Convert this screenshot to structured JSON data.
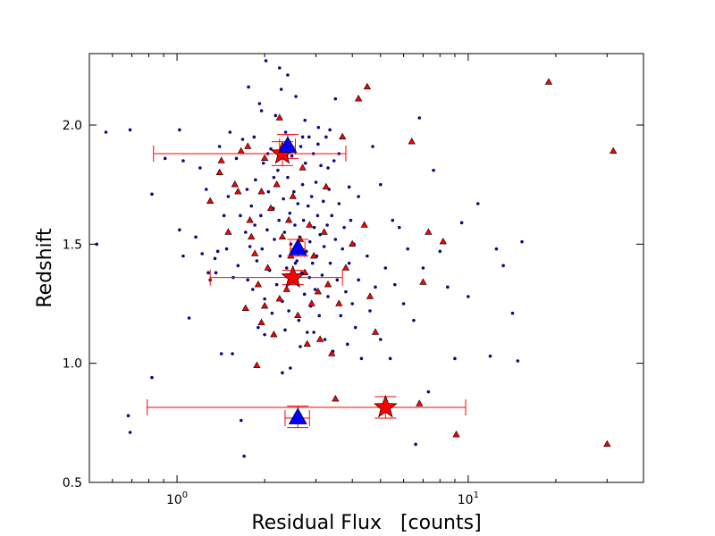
{
  "chart_data": {
    "type": "scatter",
    "xlabel": "Residual Flux   [counts]",
    "ylabel": "Redshift",
    "xscale": "log",
    "xlim": [
      0.5,
      40
    ],
    "ylim": [
      0.5,
      2.3
    ],
    "x_ticks": [
      {
        "value": 1,
        "label": "10",
        "exp": "0"
      },
      {
        "value": 10,
        "label": "10",
        "exp": "1"
      }
    ],
    "y_ticks": [
      {
        "value": 0.5,
        "label": "0.5"
      },
      {
        "value": 1.0,
        "label": "1.0"
      },
      {
        "value": 1.5,
        "label": "1.5"
      },
      {
        "value": 2.0,
        "label": "2.0"
      }
    ],
    "grid": false,
    "legend": "none",
    "colors": {
      "dots": "#0a0a80",
      "triangles": "#ff0000",
      "stars": "#ff0000",
      "blue_triangles": "#0000ff",
      "errorbars": "#ff0000"
    },
    "series": [
      {
        "marker": "dot",
        "color": "#0a0a80",
        "points": [
          [
            0.53,
            1.5
          ],
          [
            0.57,
            1.97
          ],
          [
            0.69,
            1.98
          ],
          [
            0.68,
            0.78
          ],
          [
            0.69,
            0.71
          ],
          [
            0.82,
            0.94
          ],
          [
            0.82,
            1.71
          ],
          [
            0.91,
            1.86
          ],
          [
            1.02,
            1.98
          ],
          [
            1.05,
            1.45
          ],
          [
            1.05,
            1.85
          ],
          [
            1.02,
            1.56
          ],
          [
            1.1,
            1.19
          ],
          [
            1.16,
            1.53
          ],
          [
            1.22,
            1.46
          ],
          [
            1.2,
            1.82
          ],
          [
            1.26,
            1.73
          ],
          [
            1.28,
            1.38
          ],
          [
            1.3,
            1.35
          ],
          [
            1.35,
            1.44
          ],
          [
            1.36,
            1.38
          ],
          [
            1.38,
            1.47
          ],
          [
            1.4,
            1.91
          ],
          [
            1.42,
            1.04
          ],
          [
            1.45,
            1.62
          ],
          [
            1.48,
            1.48
          ],
          [
            1.5,
            1.7
          ],
          [
            1.52,
            1.97
          ],
          [
            1.55,
            1.04
          ],
          [
            1.56,
            1.36
          ],
          [
            1.6,
            1.86
          ],
          [
            1.62,
            1.41
          ],
          [
            1.65,
            1.62
          ],
          [
            1.66,
            0.76
          ],
          [
            1.68,
            1.94
          ],
          [
            1.7,
            0.61
          ],
          [
            1.72,
            1.55
          ],
          [
            1.74,
            1.73
          ],
          [
            1.76,
            2.16
          ],
          [
            1.78,
            1.49
          ],
          [
            1.8,
            1.66
          ],
          [
            1.82,
            1.31
          ],
          [
            1.84,
            1.95
          ],
          [
            1.86,
            1.77
          ],
          [
            1.88,
            1.43
          ],
          [
            1.9,
            1.15
          ],
          [
            1.92,
            2.09
          ],
          [
            1.94,
            1.62
          ],
          [
            1.96,
            1.48
          ],
          [
            1.98,
            1.84
          ],
          [
            2.0,
            1.27
          ],
          [
            2.02,
            2.27
          ],
          [
            2.04,
            1.56
          ],
          [
            2.06,
            1.72
          ],
          [
            2.08,
            1.39
          ],
          [
            2.1,
            1.9
          ],
          [
            2.12,
            1.21
          ],
          [
            2.14,
            1.65
          ],
          [
            2.16,
            1.52
          ],
          [
            2.18,
            2.04
          ],
          [
            2.2,
            1.33
          ],
          [
            2.22,
            1.81
          ],
          [
            2.24,
            1.6
          ],
          [
            2.26,
            1.45
          ],
          [
            2.28,
            2.15
          ],
          [
            2.3,
            1.26
          ],
          [
            2.32,
            1.69
          ],
          [
            2.34,
            1.55
          ],
          [
            2.36,
            1.97
          ],
          [
            2.38,
            1.4
          ],
          [
            2.4,
            1.78
          ],
          [
            2.42,
            1.22
          ],
          [
            2.44,
            1.63
          ],
          [
            2.46,
            1.5
          ],
          [
            2.48,
            1.87
          ],
          [
            2.5,
            1.34
          ],
          [
            2.52,
            1.72
          ],
          [
            2.54,
            1.58
          ],
          [
            2.56,
            2.12
          ],
          [
            2.58,
            1.43
          ],
          [
            2.6,
            1.67
          ],
          [
            2.62,
            1.18
          ],
          [
            2.64,
            1.53
          ],
          [
            2.66,
            1.91
          ],
          [
            2.68,
            1.38
          ],
          [
            2.7,
            1.75
          ],
          [
            2.72,
            1.6
          ],
          [
            2.74,
            1.29
          ],
          [
            2.76,
            1.84
          ],
          [
            2.78,
            1.47
          ],
          [
            2.8,
            1.13
          ],
          [
            2.82,
            1.66
          ],
          [
            2.84,
            1.95
          ],
          [
            2.86,
            1.51
          ],
          [
            2.88,
            1.24
          ],
          [
            2.9,
            1.7
          ],
          [
            2.92,
            1.42
          ],
          [
            2.94,
            1.88
          ],
          [
            2.96,
            1.57
          ],
          [
            2.98,
            1.31
          ],
          [
            3.0,
            1.76
          ],
          [
            3.02,
            1.45
          ],
          [
            3.04,
            1.62
          ],
          [
            3.06,
            1.99
          ],
          [
            3.08,
            1.2
          ],
          [
            3.1,
            1.54
          ],
          [
            3.12,
            1.83
          ],
          [
            3.15,
            1.37
          ],
          [
            3.18,
            1.68
          ],
          [
            3.2,
            1.49
          ],
          [
            3.22,
            1.1
          ],
          [
            3.25,
            1.95
          ],
          [
            3.28,
            1.58
          ],
          [
            3.3,
            1.28
          ],
          [
            3.33,
            1.73
          ],
          [
            3.36,
            1.42
          ],
          [
            3.4,
            1.62
          ],
          [
            3.43,
            1.05
          ],
          [
            3.46,
            1.85
          ],
          [
            3.5,
            1.52
          ],
          [
            3.55,
            1.35
          ],
          [
            3.6,
            1.67
          ],
          [
            3.65,
            1.2
          ],
          [
            3.7,
            1.48
          ],
          [
            3.75,
            1.57
          ],
          [
            3.8,
            1.3
          ],
          [
            3.85,
            1.08
          ],
          [
            3.9,
            1.42
          ],
          [
            3.95,
            1.6
          ],
          [
            4.0,
            1.25
          ],
          [
            4.05,
            1.5
          ],
          [
            4.1,
            1.15
          ],
          [
            4.2,
            1.35
          ],
          [
            4.3,
            1.02
          ],
          [
            4.4,
            1.58
          ],
          [
            4.5,
            1.45
          ],
          [
            4.6,
            1.22
          ],
          [
            4.8,
            1.32
          ],
          [
            5.0,
            1.1
          ],
          [
            5.2,
            1.4
          ],
          [
            5.4,
            1.02
          ],
          [
            5.6,
            1.33
          ],
          [
            5.8,
            1.57
          ],
          [
            6.0,
            1.25
          ],
          [
            6.2,
            1.48
          ],
          [
            6.5,
            1.18
          ],
          [
            6.6,
            0.66
          ],
          [
            6.8,
            2.03
          ],
          [
            7.0,
            1.4
          ],
          [
            7.3,
            0.88
          ],
          [
            7.6,
            1.81
          ],
          [
            8.0,
            1.47
          ],
          [
            8.5,
            1.32
          ],
          [
            9.0,
            1.02
          ],
          [
            9.5,
            1.59
          ],
          [
            10.0,
            1.28
          ],
          [
            10.8,
            1.67
          ],
          [
            11.9,
            1.03
          ],
          [
            12.5,
            1.48
          ],
          [
            13.2,
            1.41
          ],
          [
            14.2,
            1.21
          ],
          [
            14.8,
            1.01
          ],
          [
            15.3,
            1.51
          ],
          [
            2.25,
            2.24
          ],
          [
            2.4,
            2.21
          ],
          [
            1.95,
            2.06
          ],
          [
            3.5,
            2.11
          ],
          [
            4.7,
            1.91
          ],
          [
            3.3,
            1.82
          ],
          [
            2.05,
            1.88
          ],
          [
            2.7,
            1.95
          ],
          [
            2.15,
            1.78
          ],
          [
            1.85,
            1.58
          ],
          [
            2.55,
            1.42
          ],
          [
            2.85,
            1.36
          ],
          [
            2.35,
            1.14
          ],
          [
            2.65,
            1.07
          ],
          [
            3.05,
            1.92
          ],
          [
            2.95,
            1.13
          ],
          [
            2.45,
            0.98
          ],
          [
            3.35,
            1.98
          ],
          [
            2.75,
            2.02
          ],
          [
            2.0,
            1.12
          ],
          [
            1.75,
            1.35
          ],
          [
            2.3,
            0.96
          ],
          [
            3.6,
            1.88
          ],
          [
            4.2,
            1.7
          ],
          [
            5.0,
            1.75
          ],
          [
            5.5,
            1.6
          ],
          [
            3.9,
            1.74
          ]
        ]
      },
      {
        "marker": "triangle",
        "color": "#ff0000",
        "points": [
          [
            1.3,
            1.68
          ],
          [
            1.4,
            1.8
          ],
          [
            1.42,
            1.85
          ],
          [
            1.5,
            1.55
          ],
          [
            1.58,
            1.75
          ],
          [
            1.62,
            1.72
          ],
          [
            1.66,
            1.89
          ],
          [
            1.72,
            1.23
          ],
          [
            1.75,
            1.91
          ],
          [
            1.78,
            1.6
          ],
          [
            1.8,
            1.53
          ],
          [
            1.85,
            1.46
          ],
          [
            1.88,
            0.99
          ],
          [
            1.9,
            1.33
          ],
          [
            1.95,
            1.17
          ],
          [
            2.0,
            1.86
          ],
          [
            2.05,
            1.4
          ],
          [
            2.1,
            1.65
          ],
          [
            2.15,
            1.12
          ],
          [
            2.2,
            1.75
          ],
          [
            2.25,
            1.27
          ],
          [
            2.3,
            1.53
          ],
          [
            2.32,
            1.88
          ],
          [
            2.38,
            1.31
          ],
          [
            2.42,
            1.6
          ],
          [
            2.46,
            1.45
          ],
          [
            2.5,
            1.7
          ],
          [
            2.55,
            1.36
          ],
          [
            2.6,
            1.2
          ],
          [
            2.65,
            1.52
          ],
          [
            2.7,
            1.82
          ],
          [
            2.75,
            1.38
          ],
          [
            2.8,
            1.08
          ],
          [
            2.85,
            1.58
          ],
          [
            2.9,
            1.25
          ],
          [
            2.95,
            1.45
          ],
          [
            3.05,
            1.3
          ],
          [
            3.1,
            1.1
          ],
          [
            3.2,
            1.55
          ],
          [
            3.25,
            1.74
          ],
          [
            3.3,
            1.33
          ],
          [
            3.4,
            1.04
          ],
          [
            3.5,
            0.85
          ],
          [
            3.6,
            1.25
          ],
          [
            3.8,
            1.4
          ],
          [
            4.0,
            1.5
          ],
          [
            4.2,
            2.11
          ],
          [
            4.5,
            2.16
          ],
          [
            4.6,
            1.28
          ],
          [
            4.8,
            1.13
          ],
          [
            6.4,
            1.93
          ],
          [
            7.0,
            1.34
          ],
          [
            7.3,
            1.55
          ],
          [
            8.2,
            1.51
          ],
          [
            9.1,
            0.7
          ],
          [
            18.9,
            2.18
          ],
          [
            30.0,
            0.66
          ],
          [
            31.5,
            1.89
          ],
          [
            6.8,
            0.83
          ],
          [
            4.4,
            1.58
          ],
          [
            3.7,
            1.95
          ],
          [
            2.25,
            2.03
          ],
          [
            1.95,
            1.72
          ],
          [
            2.0,
            1.24
          ]
        ]
      },
      {
        "marker": "star",
        "color": "#ff0000",
        "size": "large",
        "points": [
          {
            "x": 2.3,
            "y": 1.88,
            "xerr": [
              0.83,
              3.8
            ],
            "yerr": [
              1.83,
              1.93
            ]
          },
          {
            "x": 2.5,
            "y": 1.36,
            "xerr": [
              1.3,
              3.7
            ],
            "yerr": [
              1.33,
              1.39
            ]
          },
          {
            "x": 5.2,
            "y": 0.815,
            "xerr": [
              0.79,
              9.8
            ],
            "yerr": [
              0.77,
              0.86
            ]
          }
        ]
      },
      {
        "marker": "triangle",
        "color": "#0000ff",
        "size": "large",
        "points": [
          {
            "x": 2.4,
            "y": 1.91,
            "xerr": [
              2.25,
              2.55
            ],
            "yerr": [
              1.86,
              1.96
            ]
          },
          {
            "x": 2.6,
            "y": 1.48,
            "xerr": [
              2.45,
              2.75
            ],
            "yerr": [
              1.45,
              1.52
            ]
          },
          {
            "x": 2.6,
            "y": 0.77,
            "xerr": [
              2.35,
              2.85
            ],
            "yerr": [
              0.73,
              0.82
            ]
          }
        ]
      }
    ]
  }
}
